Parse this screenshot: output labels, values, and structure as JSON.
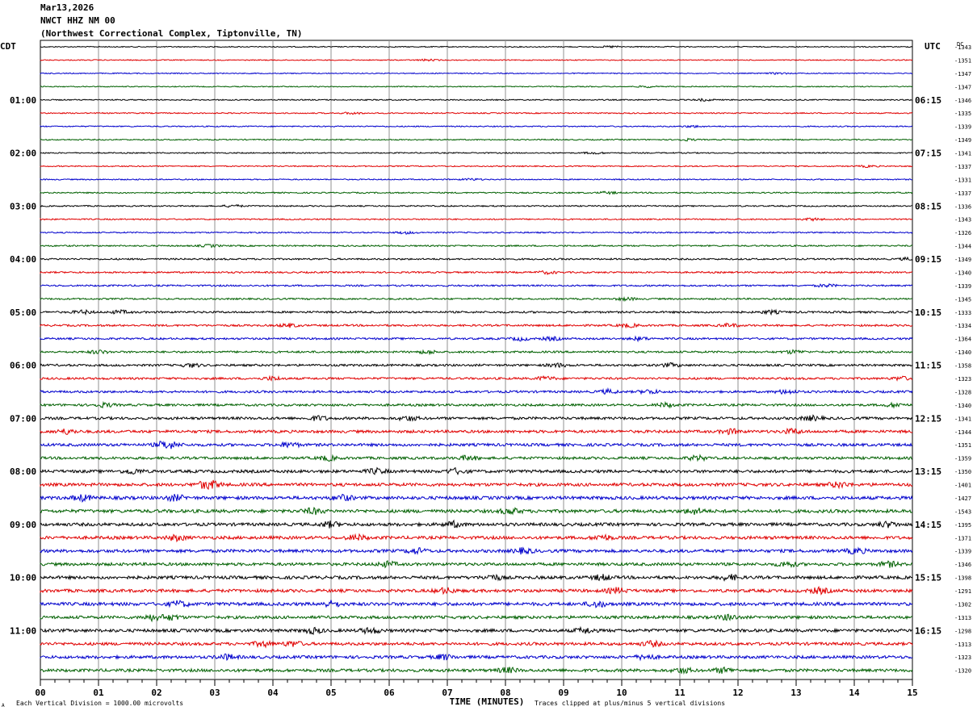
{
  "header": {
    "date": "Mar13,2026",
    "station": "NWCT HHZ NM 00",
    "location": "(Northwest Correctional Complex, Tiptonville, TN)"
  },
  "left_label": "CDT",
  "right_label": "UTC",
  "dc_label": "DC",
  "footer": {
    "xlabel": "TIME (MINUTES)",
    "scale_note": "Each Vertical Division = 1000.00 microvolts",
    "clip_note": "Traces clipped at plus/minus 5 vertical divisions",
    "corner_mark": "A"
  },
  "chart_data": {
    "type": "line",
    "title": "NWCT HHZ NM 00",
    "xlabel": "TIME (MINUTES)",
    "xlim": [
      0,
      15
    ],
    "x_ticks": [
      "00",
      "01",
      "02",
      "03",
      "04",
      "05",
      "06",
      "07",
      "08",
      "09",
      "10",
      "11",
      "12",
      "13",
      "14",
      "15"
    ],
    "grid": true,
    "trace_colors": [
      "#000000",
      "#e00000",
      "#0000cc",
      "#006000"
    ],
    "traces_per_hour": 4,
    "left_time_labels": [
      "01:00",
      "02:00",
      "03:00",
      "04:00",
      "05:00",
      "06:00",
      "07:00",
      "08:00",
      "09:00",
      "10:00",
      "11:00"
    ],
    "right_time_labels": [
      "06:15",
      "07:15",
      "08:15",
      "09:15",
      "10:15",
      "11:15",
      "12:15",
      "13:15",
      "14:15",
      "15:15",
      "16:15"
    ],
    "dc_offsets": [
      -1343,
      -1351,
      -1347,
      -1347,
      -1346,
      -1335,
      -1339,
      -1349,
      -1341,
      -1337,
      -1331,
      -1337,
      -1336,
      -1343,
      -1326,
      -1344,
      -1349,
      -1340,
      -1339,
      -1345,
      -1333,
      -1334,
      -1364,
      -1340,
      -1358,
      -1323,
      -1328,
      -1340,
      -1341,
      -1344,
      -1351,
      -1359,
      -1350,
      -1401,
      -1427,
      -1543,
      -1395,
      -1371,
      -1339,
      -1346,
      -1398,
      -1291,
      -1302,
      -1313,
      -1298,
      -1313,
      -1323,
      -1320
    ],
    "noise_level": [
      0.6,
      0.6,
      0.6,
      0.6,
      0.7,
      0.7,
      0.7,
      0.7,
      0.7,
      0.7,
      0.7,
      0.8,
      0.8,
      0.8,
      0.8,
      0.9,
      1,
      1,
      1,
      1,
      1.2,
      1.2,
      1.2,
      1.2,
      1.3,
      1.3,
      1.4,
      1.4,
      1.6,
      1.7,
      1.7,
      1.6,
      1.8,
      1.9,
      2,
      2,
      1.9,
      1.9,
      1.9,
      1.8,
      1.9,
      1.9,
      2,
      1.8,
      1.9,
      1.8,
      1.8,
      1.8
    ]
  }
}
